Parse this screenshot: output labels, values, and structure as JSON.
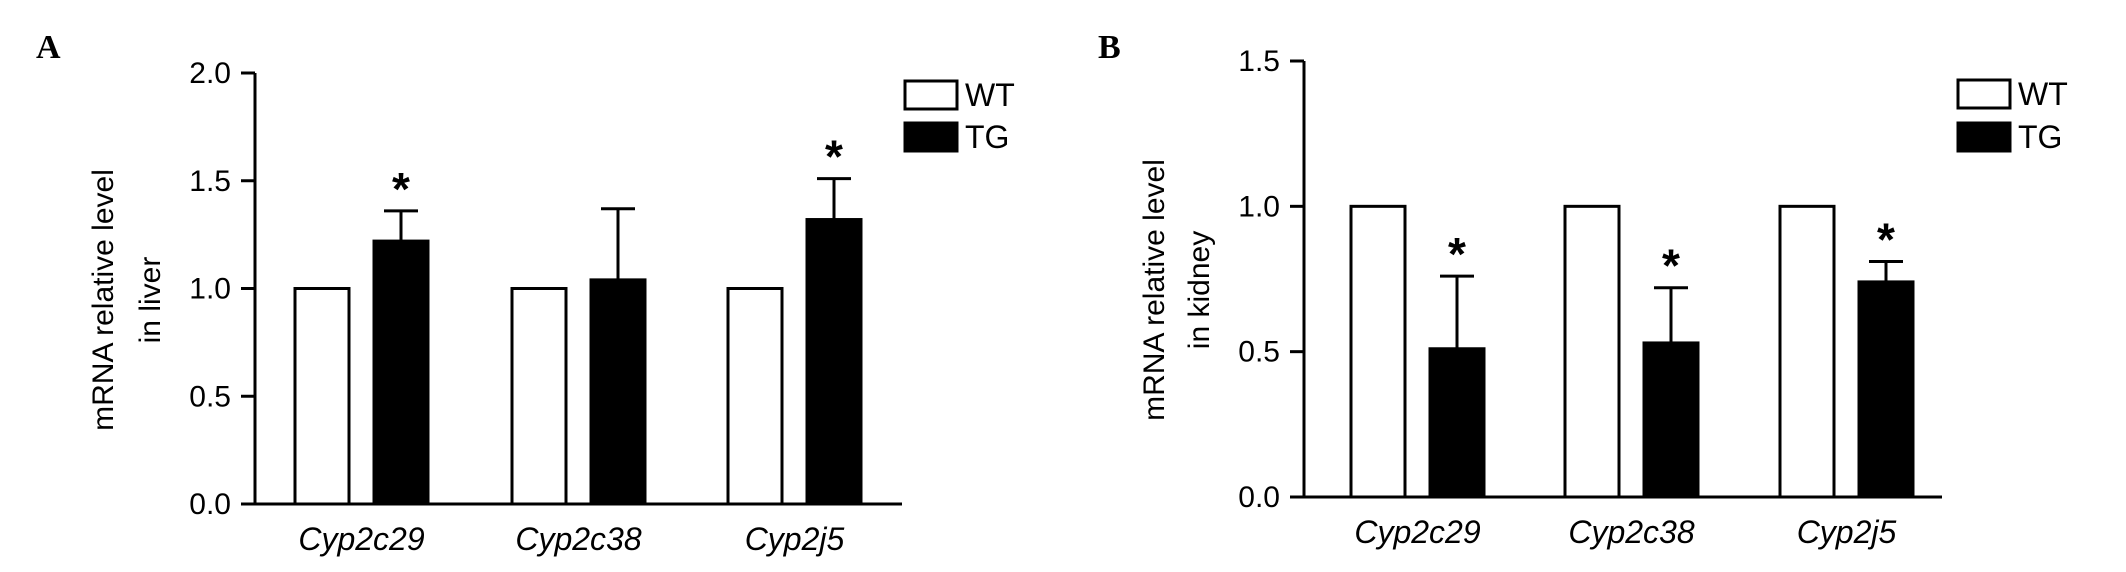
{
  "colors": {
    "wt": "#ffffff",
    "tg": "#000000",
    "stroke": "#000000"
  },
  "chart_data": [
    {
      "type": "bar",
      "panel": "A",
      "categories": [
        "Cyp2c29",
        "Cyp2c38",
        "Cyp2j5"
      ],
      "series": [
        {
          "name": "WT",
          "values": [
            1.0,
            1.0,
            1.0
          ]
        },
        {
          "name": "TG",
          "values": [
            1.22,
            1.04,
            1.32
          ],
          "errors": [
            0.14,
            0.33,
            0.19
          ]
        }
      ],
      "significance": [
        "*",
        "",
        "*"
      ],
      "ylabel_lines": [
        "mRNA relative level",
        "in liver"
      ],
      "xlabel": "",
      "ylim": [
        0,
        2.0
      ],
      "yticks": [
        "0.0",
        "0.5",
        "1.0",
        "1.5",
        "2.0"
      ],
      "legend": [
        "WT",
        "TG"
      ],
      "legend_position": "top-right",
      "grid": false
    },
    {
      "type": "bar",
      "panel": "B",
      "categories": [
        "Cyp2c29",
        "Cyp2c38",
        "Cyp2j5"
      ],
      "series": [
        {
          "name": "WT",
          "values": [
            1.0,
            1.0,
            1.0
          ]
        },
        {
          "name": "TG",
          "values": [
            0.51,
            0.53,
            0.74
          ],
          "errors": [
            0.25,
            0.19,
            0.07
          ]
        }
      ],
      "significance": [
        "*",
        "*",
        "*"
      ],
      "ylabel_lines": [
        "mRNA relative level",
        "in kidney"
      ],
      "xlabel": "",
      "ylim": [
        0,
        1.5
      ],
      "yticks": [
        "0.0",
        "0.5",
        "1.0",
        "1.5"
      ],
      "legend": [
        "WT",
        "TG"
      ],
      "legend_position": "top-right",
      "grid": false
    }
  ]
}
